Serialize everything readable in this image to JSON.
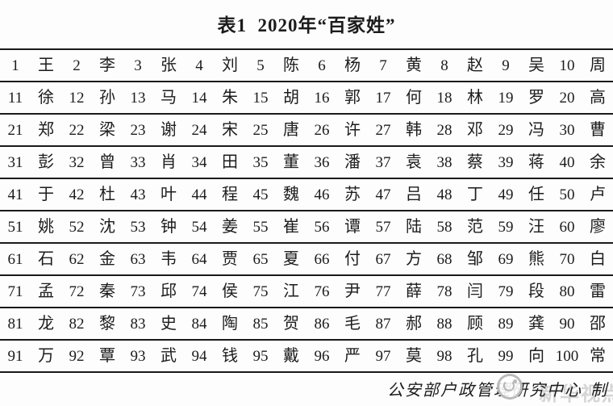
{
  "title": "表1  2020年“百家姓”",
  "table": {
    "rows": [
      [
        {
          "r": "1",
          "s": "王"
        },
        {
          "r": "2",
          "s": "李"
        },
        {
          "r": "3",
          "s": "张"
        },
        {
          "r": "4",
          "s": "刘"
        },
        {
          "r": "5",
          "s": "陈"
        },
        {
          "r": "6",
          "s": "杨"
        },
        {
          "r": "7",
          "s": "黄"
        },
        {
          "r": "8",
          "s": "赵"
        },
        {
          "r": "9",
          "s": "吴"
        },
        {
          "r": "10",
          "s": "周"
        }
      ],
      [
        {
          "r": "11",
          "s": "徐"
        },
        {
          "r": "12",
          "s": "孙"
        },
        {
          "r": "13",
          "s": "马"
        },
        {
          "r": "14",
          "s": "朱"
        },
        {
          "r": "15",
          "s": "胡"
        },
        {
          "r": "16",
          "s": "郭"
        },
        {
          "r": "17",
          "s": "何"
        },
        {
          "r": "18",
          "s": "林"
        },
        {
          "r": "19",
          "s": "罗"
        },
        {
          "r": "20",
          "s": "高"
        }
      ],
      [
        {
          "r": "21",
          "s": "郑"
        },
        {
          "r": "22",
          "s": "梁"
        },
        {
          "r": "23",
          "s": "谢"
        },
        {
          "r": "24",
          "s": "宋"
        },
        {
          "r": "25",
          "s": "唐"
        },
        {
          "r": "26",
          "s": "许"
        },
        {
          "r": "27",
          "s": "韩"
        },
        {
          "r": "28",
          "s": "邓"
        },
        {
          "r": "29",
          "s": "冯"
        },
        {
          "r": "30",
          "s": "曹"
        }
      ],
      [
        {
          "r": "31",
          "s": "彭"
        },
        {
          "r": "32",
          "s": "曾"
        },
        {
          "r": "33",
          "s": "肖"
        },
        {
          "r": "34",
          "s": "田"
        },
        {
          "r": "35",
          "s": "董"
        },
        {
          "r": "36",
          "s": "潘"
        },
        {
          "r": "37",
          "s": "袁"
        },
        {
          "r": "38",
          "s": "蔡"
        },
        {
          "r": "39",
          "s": "蒋"
        },
        {
          "r": "40",
          "s": "余"
        }
      ],
      [
        {
          "r": "41",
          "s": "于"
        },
        {
          "r": "42",
          "s": "杜"
        },
        {
          "r": "43",
          "s": "叶"
        },
        {
          "r": "44",
          "s": "程"
        },
        {
          "r": "45",
          "s": "魏"
        },
        {
          "r": "46",
          "s": "苏"
        },
        {
          "r": "47",
          "s": "吕"
        },
        {
          "r": "48",
          "s": "丁"
        },
        {
          "r": "49",
          "s": "任"
        },
        {
          "r": "50",
          "s": "卢"
        }
      ],
      [
        {
          "r": "51",
          "s": "姚"
        },
        {
          "r": "52",
          "s": "沈"
        },
        {
          "r": "53",
          "s": "钟"
        },
        {
          "r": "54",
          "s": "姜"
        },
        {
          "r": "55",
          "s": "崔"
        },
        {
          "r": "56",
          "s": "谭"
        },
        {
          "r": "57",
          "s": "陆"
        },
        {
          "r": "58",
          "s": "范"
        },
        {
          "r": "59",
          "s": "汪"
        },
        {
          "r": "60",
          "s": "廖"
        }
      ],
      [
        {
          "r": "61",
          "s": "石"
        },
        {
          "r": "62",
          "s": "金"
        },
        {
          "r": "63",
          "s": "韦"
        },
        {
          "r": "64",
          "s": "贾"
        },
        {
          "r": "65",
          "s": "夏"
        },
        {
          "r": "66",
          "s": "付"
        },
        {
          "r": "67",
          "s": "方"
        },
        {
          "r": "68",
          "s": "邹"
        },
        {
          "r": "69",
          "s": "熊"
        },
        {
          "r": "70",
          "s": "白"
        }
      ],
      [
        {
          "r": "71",
          "s": "孟"
        },
        {
          "r": "72",
          "s": "秦"
        },
        {
          "r": "73",
          "s": "邱"
        },
        {
          "r": "74",
          "s": "侯"
        },
        {
          "r": "75",
          "s": "江"
        },
        {
          "r": "76",
          "s": "尹"
        },
        {
          "r": "77",
          "s": "薛"
        },
        {
          "r": "78",
          "s": "闫"
        },
        {
          "r": "79",
          "s": "段"
        },
        {
          "r": "80",
          "s": "雷"
        }
      ],
      [
        {
          "r": "81",
          "s": "龙"
        },
        {
          "r": "82",
          "s": "黎"
        },
        {
          "r": "83",
          "s": "史"
        },
        {
          "r": "84",
          "s": "陶"
        },
        {
          "r": "85",
          "s": "贺"
        },
        {
          "r": "86",
          "s": "毛"
        },
        {
          "r": "87",
          "s": "郝"
        },
        {
          "r": "88",
          "s": "顾"
        },
        {
          "r": "89",
          "s": "龚"
        },
        {
          "r": "90",
          "s": "邵"
        }
      ],
      [
        {
          "r": "91",
          "s": "万"
        },
        {
          "r": "92",
          "s": "覃"
        },
        {
          "r": "93",
          "s": "武"
        },
        {
          "r": "94",
          "s": "钱"
        },
        {
          "r": "95",
          "s": "戴"
        },
        {
          "r": "96",
          "s": "严"
        },
        {
          "r": "97",
          "s": "莫"
        },
        {
          "r": "98",
          "s": "孔"
        },
        {
          "r": "99",
          "s": "向"
        },
        {
          "r": "100",
          "s": "常"
        }
      ]
    ]
  },
  "footer": {
    "credit": "公安部户政管理研究中心",
    "maker": "制"
  },
  "watermark": {
    "text": "新华视点"
  },
  "colors": {
    "text": "#1c1c1c",
    "line": "#1a1a1a",
    "background": "#fdfdfd",
    "watermark": "#a5a5a5"
  }
}
